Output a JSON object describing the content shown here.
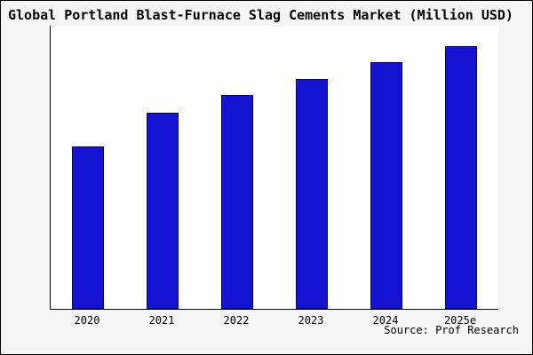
{
  "title": "Global Portland Blast-Furnace Slag Cements Market (Million USD)",
  "source": "Source: Prof Research",
  "colors": {
    "bar_fill": "#1414d2",
    "bar_edge": "#000080",
    "axis": "#000000",
    "outer_background": "#f5f5f5",
    "plot_background": "#ffffff"
  },
  "chart_data": {
    "type": "bar",
    "categories": [
      "2020",
      "2021",
      "2022",
      "2023",
      "2024",
      "2025e"
    ],
    "values": [
      184,
      222,
      242,
      260,
      279,
      297
    ],
    "title": "Global Portland Blast-Furnace Slag Cements Market (Million USD)",
    "xlabel": "",
    "ylabel": "",
    "ylim": [
      0,
      320
    ],
    "grid": false,
    "legend": false
  }
}
